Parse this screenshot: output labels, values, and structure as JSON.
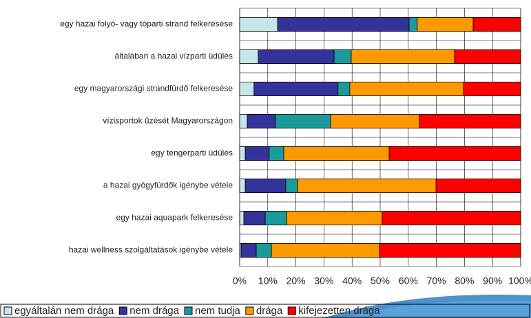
{
  "chart_data": {
    "type": "stacked_barh",
    "categories": [
      "egy hazai folyó- vagy tóparti strand felkeresése",
      "általában a hazai vízparti üdülés",
      "egy magyarországi strandfürdő felkeresése",
      "vízisportok űzését Magyarországon",
      "egy tengerparti üdülés",
      "a hazai gyógyfürdők igénybe vétele",
      "egy hazai aquapark felkeresése",
      "hazai wellness szolgáltatások igénybe vétele"
    ],
    "series": [
      {
        "name": "egyáltalán nem drága",
        "color": "#c6e6e8",
        "values": [
          13.5,
          6.6,
          5.1,
          2.7,
          2,
          2,
          1.5,
          0.5
        ]
      },
      {
        "name": "nem drága",
        "color": "#333399",
        "values": [
          46.8,
          27,
          29.9,
          10,
          8.5,
          14.4,
          7.6,
          5.4
        ]
      },
      {
        "name": "nem tudja",
        "color": "#1a9a9a",
        "values": [
          2.9,
          6.1,
          4.2,
          19.7,
          5.2,
          4.2,
          7.6,
          5.4
        ]
      },
      {
        "name": "drága",
        "color": "#ff9900",
        "values": [
          19.9,
          36.8,
          40.5,
          31.6,
          37.5,
          49.3,
          34,
          38.5
        ]
      },
      {
        "name": "kifejezetten drága",
        "color": "#ff0000",
        "values": [
          16.9,
          23.5,
          20.3,
          36,
          46.8,
          30.1,
          49.3,
          50.2
        ]
      }
    ],
    "xlim": [
      0,
      100
    ],
    "xticks": [
      {
        "value": 0,
        "label": "0%"
      },
      {
        "value": 10,
        "label": "10%"
      },
      {
        "value": 20,
        "label": "20%"
      },
      {
        "value": 30,
        "label": "30%"
      },
      {
        "value": 40,
        "label": "40%"
      },
      {
        "value": 50,
        "label": "50%"
      },
      {
        "value": 60,
        "label": "60%"
      },
      {
        "value": 70,
        "label": "70%"
      },
      {
        "value": 80,
        "label": "80%"
      },
      {
        "value": 90,
        "label": "90%"
      },
      {
        "value": 100,
        "label": "100%"
      }
    ],
    "grid": true,
    "legend": "bottom"
  }
}
